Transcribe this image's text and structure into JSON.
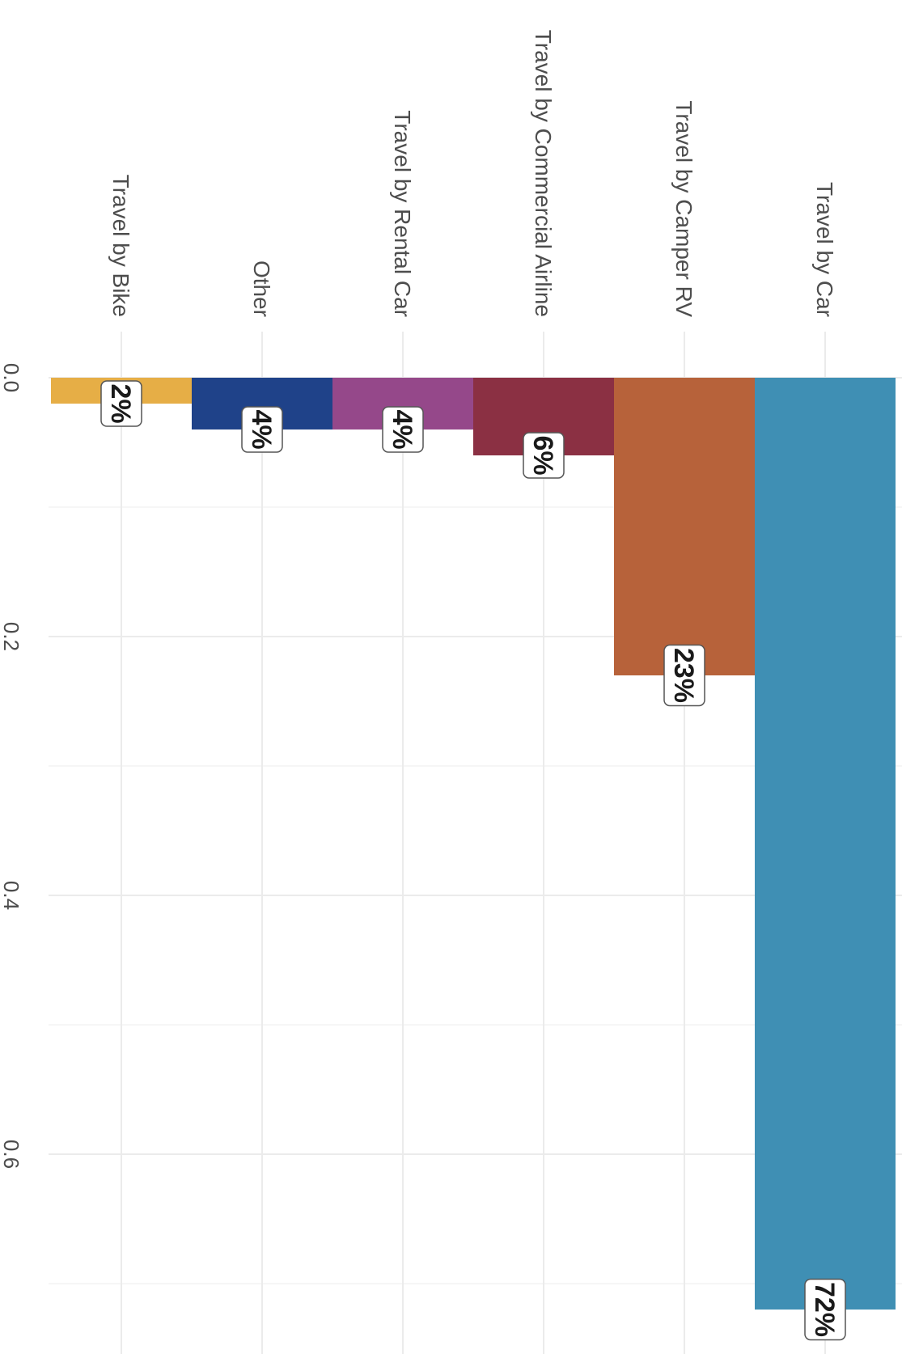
{
  "chart_data": {
    "type": "bar",
    "orientation": "rotated-90-clockwise",
    "title": "",
    "xlabel": "",
    "ylabel": "",
    "categories": [
      "Travel by Car",
      "Travel by Camper RV",
      "Travel by Commercial Airline",
      "Travel by Rental Car",
      "Other",
      "Travel by Bike"
    ],
    "values": [
      0.72,
      0.23,
      0.06,
      0.04,
      0.04,
      0.02
    ],
    "data_labels": [
      "72%",
      "23%",
      "6%",
      "4%",
      "4%",
      "2%"
    ],
    "colors": [
      "#3f8fb4",
      "#b7623a",
      "#8b3043",
      "#95488a",
      "#1f4289",
      "#e6ae46"
    ],
    "ylim": [
      0,
      0.75
    ],
    "ticks": [
      0.0,
      0.2,
      0.4,
      0.6
    ],
    "tick_labels": [
      "0.0",
      "0.2",
      "0.4",
      "0.6"
    ],
    "grid": true,
    "legend": "none"
  }
}
